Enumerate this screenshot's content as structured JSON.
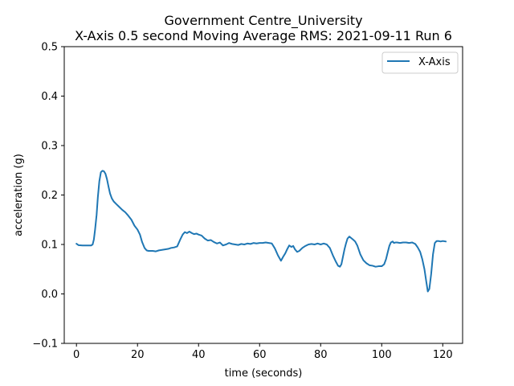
{
  "chart_data": {
    "type": "line",
    "title_line1": "Government Centre_University",
    "title_line2": "X-Axis 0.5 second Moving Average RMS: 2021-09-11 Run 6",
    "xlabel": "time (seconds)",
    "ylabel": "acceleration (g)",
    "xlim": [
      -4,
      126.5
    ],
    "ylim": [
      -0.1,
      0.5
    ],
    "xticks": [
      0,
      20,
      40,
      60,
      80,
      100,
      120
    ],
    "yticks": [
      -0.1,
      0.0,
      0.1,
      0.2,
      0.3,
      0.4,
      0.5
    ],
    "ytick_labels": [
      "−0.1",
      "0.0",
      "0.1",
      "0.2",
      "0.3",
      "0.4",
      "0.5"
    ],
    "xtick_labels": [
      "0",
      "20",
      "40",
      "60",
      "80",
      "100",
      "120"
    ],
    "grid": false,
    "legend_position": "top-right",
    "series": [
      {
        "name": "X-Axis",
        "color": "#1f77b4",
        "x": [
          0,
          0.7,
          2,
          3,
          4,
          4.8,
          5.3,
          5.7,
          6.1,
          6.6,
          7,
          7.5,
          8,
          8.5,
          9,
          9.5,
          10,
          10.5,
          11,
          11.6,
          12.2,
          13,
          14,
          15,
          16,
          17,
          18,
          19,
          20,
          20.8,
          21.5,
          22.3,
          23,
          23.6,
          24.2,
          25,
          26,
          27,
          28,
          29,
          30,
          31,
          32,
          33,
          34,
          34.8,
          35.5,
          36.2,
          37,
          37.8,
          38.5,
          39.3,
          40,
          41,
          42,
          43,
          44,
          45,
          46,
          47,
          48,
          49,
          50,
          51,
          52,
          53,
          54,
          55,
          56,
          57,
          58,
          59,
          60,
          61,
          62,
          63,
          64,
          65,
          66,
          67,
          67.7,
          68.4,
          69,
          69.7,
          70.4,
          71,
          71.6,
          72.3,
          73,
          74,
          75,
          76,
          77,
          78,
          79,
          80,
          81,
          82,
          83,
          84,
          85,
          85.7,
          86.3,
          86.8,
          87.3,
          87.8,
          88.3,
          88.8,
          89.4,
          90,
          90.6,
          91.3,
          92,
          93,
          94,
          95,
          96,
          97,
          98,
          99,
          100,
          100.8,
          101.4,
          102,
          102.5,
          103,
          103.6,
          104,
          104.5,
          105,
          106,
          107,
          108,
          109,
          110,
          111,
          111.8,
          112.6,
          113.3,
          114,
          114.6,
          115.1,
          115.6,
          116.2,
          116.8,
          117.4,
          118,
          118.6,
          119.3,
          120,
          121
        ],
        "y": [
          0.1015,
          0.0985,
          0.098,
          0.098,
          0.098,
          0.098,
          0.1,
          0.11,
          0.13,
          0.16,
          0.195,
          0.228,
          0.246,
          0.249,
          0.248,
          0.243,
          0.232,
          0.217,
          0.203,
          0.193,
          0.187,
          0.182,
          0.176,
          0.17,
          0.165,
          0.158,
          0.15,
          0.138,
          0.13,
          0.12,
          0.105,
          0.093,
          0.088,
          0.087,
          0.087,
          0.087,
          0.086,
          0.088,
          0.089,
          0.09,
          0.091,
          0.093,
          0.094,
          0.096,
          0.11,
          0.12,
          0.125,
          0.123,
          0.126,
          0.123,
          0.121,
          0.122,
          0.12,
          0.118,
          0.112,
          0.108,
          0.109,
          0.105,
          0.102,
          0.104,
          0.098,
          0.1,
          0.103,
          0.101,
          0.1,
          0.099,
          0.101,
          0.1,
          0.102,
          0.101,
          0.103,
          0.102,
          0.103,
          0.103,
          0.104,
          0.103,
          0.102,
          0.092,
          0.078,
          0.067,
          0.075,
          0.082,
          0.09,
          0.098,
          0.095,
          0.097,
          0.09,
          0.085,
          0.087,
          0.093,
          0.097,
          0.1,
          0.101,
          0.1,
          0.102,
          0.1,
          0.102,
          0.1,
          0.093,
          0.078,
          0.065,
          0.057,
          0.055,
          0.06,
          0.075,
          0.09,
          0.102,
          0.112,
          0.116,
          0.113,
          0.11,
          0.106,
          0.098,
          0.08,
          0.068,
          0.062,
          0.058,
          0.057,
          0.055,
          0.056,
          0.056,
          0.06,
          0.07,
          0.085,
          0.097,
          0.104,
          0.106,
          0.103,
          0.104,
          0.104,
          0.103,
          0.104,
          0.104,
          0.103,
          0.104,
          0.101,
          0.094,
          0.085,
          0.07,
          0.05,
          0.025,
          0.005,
          0.01,
          0.04,
          0.08,
          0.103,
          0.107,
          0.107,
          0.106,
          0.107,
          0.106
        ]
      }
    ]
  }
}
